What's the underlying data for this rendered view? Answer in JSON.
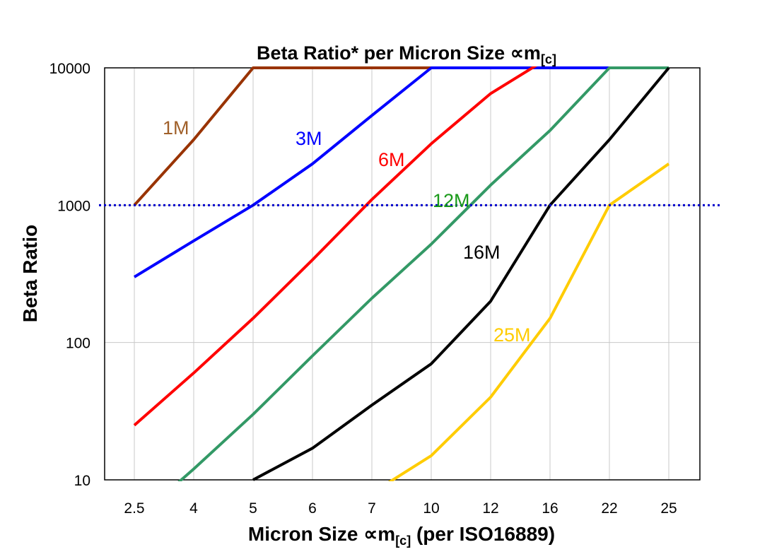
{
  "chart_data": {
    "type": "line",
    "title": "Beta Ratio* per Micron Size ∝m",
    "title_sub": "[c]",
    "xlabel": "Micron Size ∝m",
    "xlabel_sub": "[c]",
    "xlabel_suffix": " (per ISO16889)",
    "ylabel": "Beta Ratio",
    "yscale": "log",
    "ylim": [
      10,
      10000
    ],
    "yticks": [
      "10",
      "100",
      "1000",
      "10000"
    ],
    "categories": [
      "2.5",
      "4",
      "5",
      "6",
      "7",
      "10",
      "12",
      "16",
      "22",
      "25"
    ],
    "grid": "vertical lines at categories, horizontal at 100 and 1000",
    "reference_line": {
      "value": 1000,
      "style": "dotted",
      "color": "#0000cc"
    },
    "series": [
      {
        "name": "1M",
        "color": "#993300",
        "label_color": "#a0602a",
        "values": [
          1000,
          3000,
          10000,
          10000,
          10000,
          10000,
          null,
          null,
          null,
          null
        ]
      },
      {
        "name": "3M",
        "color": "#0000ff",
        "label_color": "#0000ff",
        "values": [
          300,
          550,
          1000,
          2000,
          4500,
          10000,
          10000,
          10000,
          10000,
          null
        ]
      },
      {
        "name": "6M",
        "color": "#ff0000",
        "label_color": "#ff0000",
        "values": [
          25,
          60,
          150,
          400,
          1100,
          2800,
          6500,
          12000,
          null,
          null
        ]
      },
      {
        "name": "12M",
        "color": "#339966",
        "label_color": "#1a9a1a",
        "values": [
          5,
          12,
          30,
          80,
          210,
          520,
          1400,
          3500,
          10000,
          10000
        ]
      },
      {
        "name": "16M",
        "color": "#000000",
        "label_color": "#000000",
        "values": [
          null,
          null,
          10,
          17,
          35,
          70,
          200,
          1000,
          3000,
          10000
        ]
      },
      {
        "name": "25M",
        "color": "#ffcc00",
        "label_color": "#ffcc00",
        "values": [
          null,
          null,
          null,
          null,
          8,
          15,
          40,
          150,
          1000,
          2000
        ]
      }
    ]
  }
}
